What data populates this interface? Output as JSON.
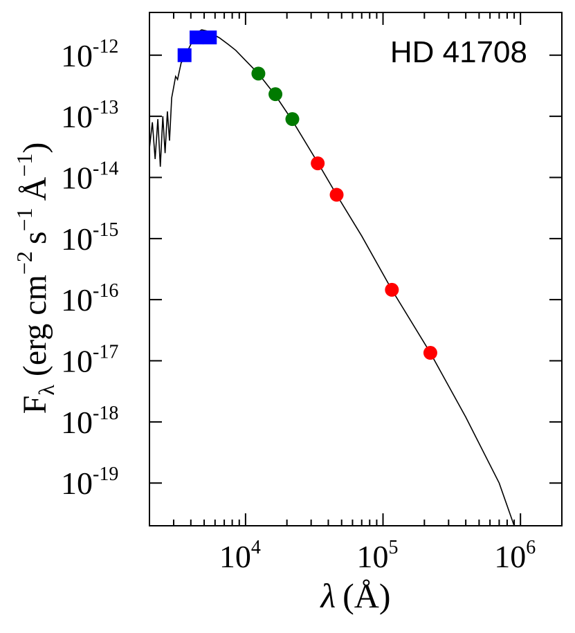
{
  "chart_data": {
    "type": "scatter",
    "annotation": "HD 41708",
    "xlabel": {
      "symbol": "λ",
      "unit": "(Å)"
    },
    "ylabel": {
      "symbol": "F",
      "subscript": "λ",
      "unit_prefix": "(erg cm",
      "exp_cm": "−2",
      "s": "s",
      "exp_s": "−1",
      "angstrom": "Å",
      "exp_a": "−1",
      "close": ")"
    },
    "x_scale": "log",
    "y_scale": "log",
    "xlim": [
      2000,
      2000000
    ],
    "ylim": [
      2e-20,
      5e-12
    ],
    "x_ticks": [
      {
        "value": 10000,
        "base": "10",
        "exp": "4"
      },
      {
        "value": 100000,
        "base": "10",
        "exp": "5"
      },
      {
        "value": 1000000,
        "base": "10",
        "exp": "6"
      }
    ],
    "y_ticks": [
      {
        "value": 1e-12,
        "base": "10",
        "exp": "-12"
      },
      {
        "value": 1e-13,
        "base": "10",
        "exp": "-13"
      },
      {
        "value": 1e-14,
        "base": "10",
        "exp": "-14"
      },
      {
        "value": 1e-15,
        "base": "10",
        "exp": "-15"
      },
      {
        "value": 1e-16,
        "base": "10",
        "exp": "-16"
      },
      {
        "value": 1e-17,
        "base": "10",
        "exp": "-17"
      },
      {
        "value": 1e-18,
        "base": "10",
        "exp": "-18"
      },
      {
        "value": 1e-19,
        "base": "10",
        "exp": "-19"
      }
    ],
    "grid": false,
    "colors": {
      "optical": "#0000ff",
      "nir": "#007a00",
      "mir": "#ff0000",
      "model": "#000000"
    },
    "series": [
      {
        "marker": "square",
        "color": "#0000ff",
        "points": [
          {
            "x": 3600,
            "y": 1e-12
          },
          {
            "x": 4400,
            "y": 1.95e-12
          },
          {
            "x": 5500,
            "y": 1.95e-12
          }
        ]
      },
      {
        "marker": "circle",
        "color": "#007a00",
        "points": [
          {
            "x": 12400,
            "y": 5e-13
          },
          {
            "x": 16500,
            "y": 2.3e-13
          },
          {
            "x": 21900,
            "y": 9e-14
          }
        ]
      },
      {
        "marker": "circle",
        "color": "#ff0000",
        "points": [
          {
            "x": 33500,
            "y": 1.7e-14
          },
          {
            "x": 46000,
            "y": 5.2e-15
          },
          {
            "x": 116000,
            "y": 1.45e-16
          },
          {
            "x": 221000,
            "y": 1.35e-17
          }
        ]
      },
      {
        "type": "line",
        "color": "#000000",
        "points": [
          {
            "x": 2000,
            "y": 3e-14
          },
          {
            "x": 2100,
            "y": 8e-14
          },
          {
            "x": 2200,
            "y": 2e-14
          },
          {
            "x": 2300,
            "y": 9e-14
          },
          {
            "x": 2400,
            "y": 1.5e-14
          },
          {
            "x": 2500,
            "y": 1e-13
          },
          {
            "x": 2600,
            "y": 2.5e-14
          },
          {
            "x": 2700,
            "y": 1.2e-13
          },
          {
            "x": 2800,
            "y": 4e-14
          },
          {
            "x": 2900,
            "y": 2e-13
          },
          {
            "x": 3000,
            "y": 3e-13
          },
          {
            "x": 3100,
            "y": 4.5e-13
          },
          {
            "x": 3200,
            "y": 4e-13
          },
          {
            "x": 3400,
            "y": 7.5e-13
          },
          {
            "x": 3600,
            "y": 9e-13
          },
          {
            "x": 3800,
            "y": 1.2e-12
          },
          {
            "x": 4000,
            "y": 1.5e-12
          },
          {
            "x": 4200,
            "y": 2e-12
          },
          {
            "x": 4500,
            "y": 2.4e-12
          },
          {
            "x": 4800,
            "y": 2.6e-12
          },
          {
            "x": 5200,
            "y": 2.5e-12
          },
          {
            "x": 5800,
            "y": 2.2e-12
          },
          {
            "x": 6500,
            "y": 1.9e-12
          },
          {
            "x": 7500,
            "y": 1.5e-12
          },
          {
            "x": 8500,
            "y": 1.2e-12
          },
          {
            "x": 10000,
            "y": 8.2e-13
          },
          {
            "x": 12400,
            "y": 5e-13
          },
          {
            "x": 16500,
            "y": 2.2e-13
          },
          {
            "x": 21900,
            "y": 8.5e-14
          },
          {
            "x": 33500,
            "y": 1.75e-14
          },
          {
            "x": 46000,
            "y": 5.2e-15
          },
          {
            "x": 70000,
            "y": 1.1e-15
          },
          {
            "x": 116000,
            "y": 1.45e-16
          },
          {
            "x": 221000,
            "y": 1.35e-17
          },
          {
            "x": 400000,
            "y": 1.2e-18
          },
          {
            "x": 700000,
            "y": 1e-19
          },
          {
            "x": 900000,
            "y": 2e-20
          }
        ]
      }
    ]
  }
}
